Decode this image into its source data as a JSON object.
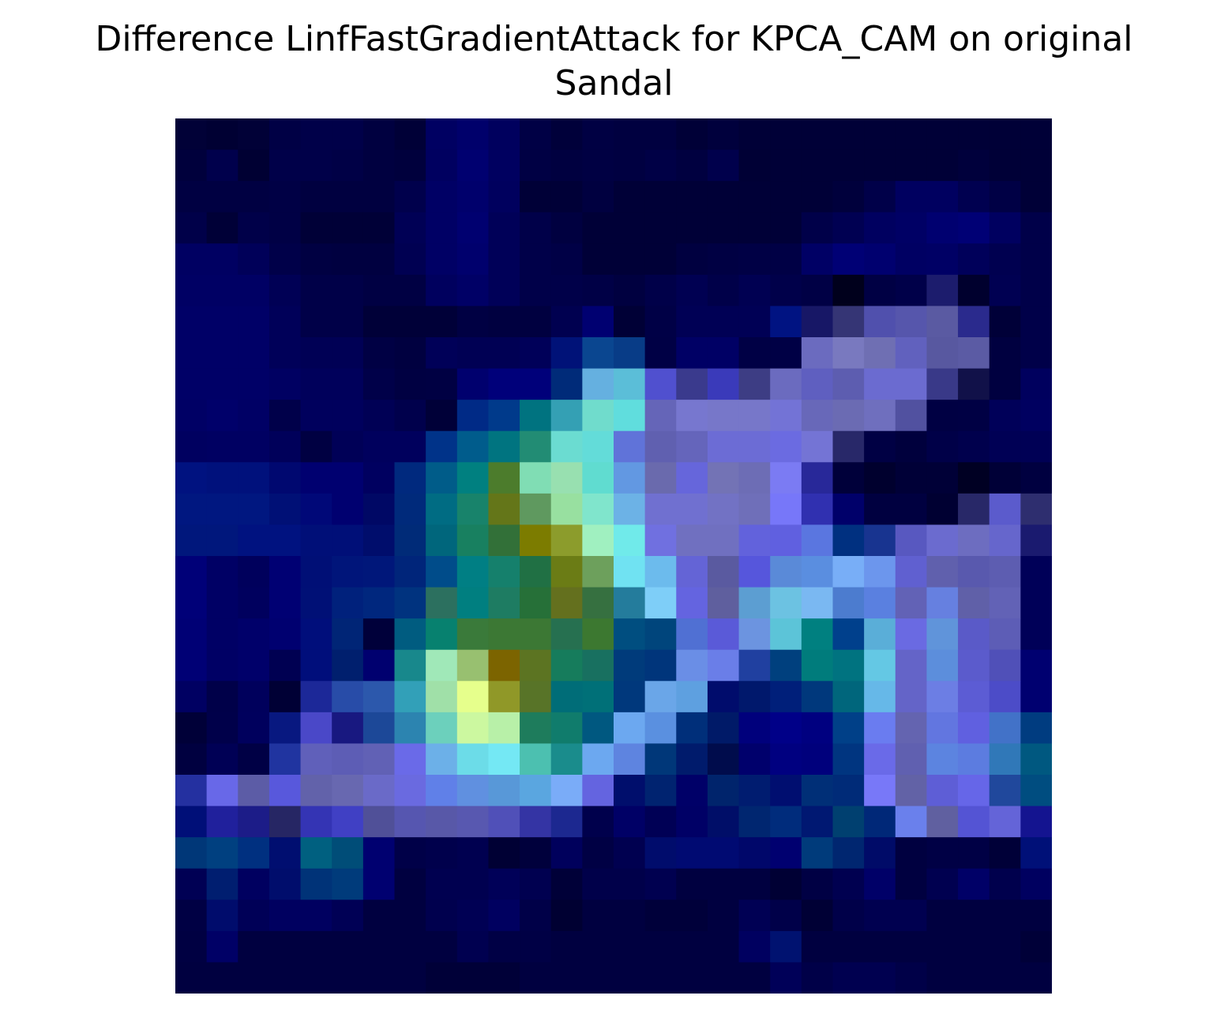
{
  "chart_data": {
    "type": "heatmap",
    "title": "Difference LinfFastGradientAttack for KPCA_CAM on original\nSandal",
    "xlabel": "",
    "ylabel": "",
    "axes_visible": false,
    "grid": false,
    "colormap": "jet",
    "rows": 28,
    "cols": 28,
    "colors": [
      [
        "#010137",
        "#000033",
        "#010137",
        "#000045",
        "#000049",
        "#000049",
        "#000040",
        "#000037",
        "#000062",
        "#00006b",
        "#00005e",
        "#000045",
        "#00003a",
        "#000043",
        "#000040",
        "#000040",
        "#000037",
        "#00003d",
        "#000037",
        "#000037",
        "#000037",
        "#000037",
        "#000037",
        "#000037",
        "#000037",
        "#000037",
        "#000037",
        "#000037"
      ],
      [
        "#00003c",
        "#00004c",
        "#000033",
        "#000049",
        "#000049",
        "#000046",
        "#000040",
        "#00003d",
        "#000060",
        "#000070",
        "#000060",
        "#000044",
        "#000040",
        "#000043",
        "#000041",
        "#000046",
        "#000040",
        "#00004c",
        "#000035",
        "#000037",
        "#000037",
        "#000037",
        "#000037",
        "#000037",
        "#000037",
        "#00003c",
        "#000037",
        "#000037"
      ],
      [
        "#000042",
        "#000042",
        "#000042",
        "#000045",
        "#000040",
        "#000040",
        "#000040",
        "#00004c",
        "#000065",
        "#00006c",
        "#00005e",
        "#000037",
        "#000037",
        "#000040",
        "#000037",
        "#000037",
        "#000037",
        "#000037",
        "#000037",
        "#000037",
        "#000037",
        "#00003c",
        "#000049",
        "#000060",
        "#000060",
        "#000050",
        "#000045",
        "#000037"
      ],
      [
        "#000049",
        "#000037",
        "#000049",
        "#000045",
        "#000037",
        "#000037",
        "#000037",
        "#000055",
        "#000065",
        "#000070",
        "#000058",
        "#000049",
        "#000040",
        "#000037",
        "#000037",
        "#000037",
        "#000037",
        "#000037",
        "#000037",
        "#000037",
        "#000049",
        "#000052",
        "#000060",
        "#000065",
        "#000070",
        "#000075",
        "#000060",
        "#000049"
      ],
      [
        "#000062",
        "#000062",
        "#000059",
        "#000049",
        "#000042",
        "#000040",
        "#000040",
        "#000052",
        "#000065",
        "#00006d",
        "#000058",
        "#000049",
        "#000046",
        "#000037",
        "#000037",
        "#000037",
        "#000040",
        "#000043",
        "#000045",
        "#000045",
        "#000065",
        "#000075",
        "#00006f",
        "#000063",
        "#000065",
        "#00005a",
        "#000050",
        "#000049"
      ],
      [
        "#000064",
        "#000064",
        "#000064",
        "#000055",
        "#000048",
        "#000048",
        "#000043",
        "#000043",
        "#00005e",
        "#000066",
        "#000058",
        "#000049",
        "#000049",
        "#000046",
        "#000040",
        "#000049",
        "#000052",
        "#000049",
        "#000052",
        "#00004a",
        "#000045",
        "#00001c",
        "#000044",
        "#000049",
        "#1c1c6d",
        "#00002e",
        "#000052",
        "#000049"
      ],
      [
        "#000067",
        "#000067",
        "#000067",
        "#000059",
        "#000048",
        "#000048",
        "#000038",
        "#000038",
        "#000038",
        "#000043",
        "#000040",
        "#000040",
        "#000050",
        "#000071",
        "#000036",
        "#000046",
        "#000055",
        "#000055",
        "#000055",
        "#001382",
        "#171766",
        "#353575",
        "#5050ad",
        "#5656ac",
        "#5a5aa2",
        "#2a2a8d",
        "#000038",
        "#000049"
      ],
      [
        "#000067",
        "#000067",
        "#000067",
        "#000059",
        "#000055",
        "#000055",
        "#000044",
        "#000040",
        "#000058",
        "#000054",
        "#000054",
        "#000059",
        "#001278",
        "#0a4690",
        "#083c87",
        "#000045",
        "#000065",
        "#000065",
        "#000045",
        "#000045",
        "#6b6bbf",
        "#7979bf",
        "#6f6fb3",
        "#6161be",
        "#5858a0",
        "#5b5ba4",
        "#000040",
        "#000049"
      ],
      [
        "#000067",
        "#000067",
        "#000067",
        "#000062",
        "#00005b",
        "#00005b",
        "#000049",
        "#000042",
        "#000043",
        "#00006e",
        "#00007a",
        "#00007a",
        "#002b79",
        "#65b0e0",
        "#5bbed8",
        "#5050cf",
        "#3a3a8d",
        "#3a3aba",
        "#3d3d84",
        "#6b6bbf",
        "#5f5fc0",
        "#5d5db0",
        "#6b6bd0",
        "#6b6bd0",
        "#393988",
        "#111149",
        "#000040",
        "#00005e"
      ],
      [
        "#000065",
        "#00006a",
        "#000065",
        "#00004a",
        "#00005d",
        "#00005d",
        "#000055",
        "#00004c",
        "#000038",
        "#002a86",
        "#003a8b",
        "#007380",
        "#34a0b4",
        "#70dccc",
        "#60dddd",
        "#6565b8",
        "#7777cf",
        "#7777c9",
        "#7777c9",
        "#7373d6",
        "#6868b9",
        "#6b6bb3",
        "#6f6fbe",
        "#5151a0",
        "#000043",
        "#000044",
        "#000059",
        "#000060"
      ],
      [
        "#000060",
        "#000062",
        "#000062",
        "#00005a",
        "#000042",
        "#000057",
        "#00005d",
        "#00005d",
        "#003389",
        "#005c8c",
        "#007480",
        "#228c74",
        "#6bdcd1",
        "#63dcd9",
        "#6073d9",
        "#6060b0",
        "#6565bb",
        "#6c6cd5",
        "#6c6cd5",
        "#6b6be1",
        "#7474d5",
        "#282869",
        "#000044",
        "#00003d",
        "#000048",
        "#00004d",
        "#000055",
        "#000055"
      ],
      [
        "#001280",
        "#00117c",
        "#00117c",
        "#000870",
        "#000070",
        "#000070",
        "#000060",
        "#00297e",
        "#005c89",
        "#008080",
        "#4c7c2c",
        "#80ddb4",
        "#98e0b0",
        "#60dcd0",
        "#6298e2",
        "#6a6aad",
        "#6666db",
        "#7373b5",
        "#6d6db5",
        "#7b7bf3",
        "#282899",
        "#00003a",
        "#00002e",
        "#000037",
        "#000037",
        "#000023",
        "#000037",
        "#000040"
      ],
      [
        "#001780",
        "#001780",
        "#001780",
        "#001076",
        "#000878",
        "#000070",
        "#000865",
        "#002a7b",
        "#006c83",
        "#18836b",
        "#647619",
        "#5f995f",
        "#98e0a0",
        "#80e5cc",
        "#6cb2e6",
        "#7070d0",
        "#7070d0",
        "#7272c4",
        "#6f6fb9",
        "#7777f9",
        "#3030b0",
        "#00006a",
        "#000040",
        "#000040",
        "#000032",
        "#282868",
        "#5b5bcc",
        "#2e2e6f"
      ],
      [
        "#00177c",
        "#00177c",
        "#001280",
        "#001280",
        "#000f78",
        "#000f78",
        "#000d6c",
        "#002b78",
        "#00667c",
        "#188060",
        "#327038",
        "#7c7c00",
        "#8c9c2c",
        "#a0f0c0",
        "#70eaea",
        "#7070e0",
        "#7070c0",
        "#7070c0",
        "#6262dc",
        "#6060e0",
        "#5a76e0",
        "#003080",
        "#183490",
        "#5858c0",
        "#6b6bcf",
        "#6d6dc0",
        "#6666cc",
        "#1a1a6f"
      ],
      [
        "#000078",
        "#000065",
        "#00005c",
        "#000073",
        "#000f76",
        "#00157a",
        "#00177a",
        "#00257a",
        "#004c8a",
        "#007f84",
        "#15806c",
        "#207044",
        "#6b7c15",
        "#6da05c",
        "#70e2f2",
        "#6cbbed",
        "#6464d6",
        "#5a5aa0",
        "#5656dc",
        "#5a8ad8",
        "#5a8ee0",
        "#78aef7",
        "#6c96ed",
        "#6060d0",
        "#6060ad",
        "#5959ae",
        "#5d5db1",
        "#000058"
      ],
      [
        "#000078",
        "#000065",
        "#00005e",
        "#000073",
        "#001076",
        "#00217c",
        "#00277e",
        "#00337f",
        "#2c705f",
        "#007f80",
        "#1e7c62",
        "#267038",
        "#64701e",
        "#367040",
        "#247c9c",
        "#7ecef8",
        "#6464e0",
        "#5f5f9e",
        "#5c9ed2",
        "#6cc2e2",
        "#7ab8f2",
        "#4c7ccf",
        "#5a80e0",
        "#6262b6",
        "#6680e0",
        "#6060a8",
        "#6262b6",
        "#000058"
      ],
      [
        "#000075",
        "#000065",
        "#00006a",
        "#000070",
        "#000e7b",
        "#002576",
        "#00003a",
        "#005c80",
        "#07816f",
        "#3a7a3a",
        "#3c7834",
        "#3c7834",
        "#267050",
        "#3c7830",
        "#004e80",
        "#00457c",
        "#5070d3",
        "#5a5ad8",
        "#6c94e0",
        "#5cc4d8",
        "#008080",
        "#00408c",
        "#5aaed8",
        "#6a6ae2",
        "#6094da",
        "#5a5ac8",
        "#5d5db6",
        "#000058"
      ],
      [
        "#000075",
        "#000065",
        "#00006a",
        "#000052",
        "#000e7b",
        "#001f6e",
        "#00006f",
        "#18888c",
        "#a0e8b8",
        "#98c070",
        "#7c6400",
        "#5c7422",
        "#167c5c",
        "#187060",
        "#003b7b",
        "#00357b",
        "#6a8ee6",
        "#6a7ee8",
        "#2040a0",
        "#00407e",
        "#007c7c",
        "#007380",
        "#64c8e4",
        "#6464c8",
        "#5c8edc",
        "#5b5bcc",
        "#5050b8",
        "#000070"
      ],
      [
        "#000062",
        "#000049",
        "#00005c",
        "#000035",
        "#1c2898",
        "#284ca8",
        "#2c58ac",
        "#32a0b8",
        "#a0e0a8",
        "#e6ff8c",
        "#909828",
        "#587428",
        "#006d78",
        "#007078",
        "#00387c",
        "#6aa6e8",
        "#5ea0e0",
        "#000c6c",
        "#00186c",
        "#001f7a",
        "#00387c",
        "#00667c",
        "#66b8e8",
        "#6464c8",
        "#6c7ee4",
        "#5c5cd4",
        "#4c4cc8",
        "#000070"
      ],
      [
        "#000038",
        "#00004a",
        "#00005d",
        "#081880",
        "#4a48c8",
        "#181880",
        "#1c4898",
        "#2c84b0",
        "#6cd0bc",
        "#ccf8a0",
        "#b8f0a8",
        "#1e7c5c",
        "#107c6c",
        "#005880",
        "#6ca8f0",
        "#5a90e0",
        "#002f7a",
        "#001a68",
        "#00007c",
        "#000088",
        "#000080",
        "#004088",
        "#6a7cf0",
        "#6464b0",
        "#6276e0",
        "#6060e0",
        "#4272c8",
        "#003c80"
      ],
      [
        "#000040",
        "#000055",
        "#000045",
        "#2034a0",
        "#6060ba",
        "#5d5db5",
        "#6161b5",
        "#6a6ae8",
        "#6cb0e8",
        "#6cdce8",
        "#74e8f4",
        "#4cc0b0",
        "#1a8c8c",
        "#6ca8f0",
        "#5e84e0",
        "#003779",
        "#001b6c",
        "#000c4c",
        "#00006c",
        "#000080",
        "#00007c",
        "#003580",
        "#6a6ae8",
        "#6060b0",
        "#5c84e0",
        "#5c7ce0",
        "#3078b8",
        "#005880"
      ],
      [
        "#2430a0",
        "#6868e8",
        "#5c5ca6",
        "#5858dc",
        "#6262aa",
        "#6868b0",
        "#6a6ac8",
        "#6a6ae0",
        "#6080e8",
        "#6090e0",
        "#5898d8",
        "#5aa6e0",
        "#7aacf8",
        "#6464e0",
        "#000e6c",
        "#002370",
        "#000068",
        "#00246c",
        "#001c70",
        "#000e70",
        "#002f77",
        "#002b78",
        "#7878f8",
        "#6262a6",
        "#5e5ed6",
        "#6666e8",
        "#20489c",
        "#004d80"
      ],
      [
        "#000f78",
        "#20209c",
        "#1c1c88",
        "#262664",
        "#3434b4",
        "#4040c4",
        "#505098",
        "#5656b0",
        "#5858a8",
        "#5858b0",
        "#5050b8",
        "#3434a4",
        "#1c2890",
        "#00004c",
        "#000066",
        "#000055",
        "#000066",
        "#000e68",
        "#002670",
        "#002c7c",
        "#001872",
        "#004070",
        "#002878",
        "#6a80ec",
        "#6060a0",
        "#5454d4",
        "#6464d8",
        "#141490",
        "#000058"
      ],
      [
        "#003778",
        "#004080",
        "#003080",
        "#000e70",
        "#006080",
        "#004d78",
        "#000070",
        "#000048",
        "#00004c",
        "#000050",
        "#000034",
        "#00003c",
        "#00005c",
        "#000044",
        "#000050",
        "#000c6c",
        "#000a72",
        "#000a72",
        "#00076a",
        "#000070",
        "#003b7b",
        "#002670",
        "#000b68",
        "#000040",
        "#000045",
        "#000045",
        "#000038",
        "#001078"
      ],
      [
        "#000054",
        "#001e70",
        "#000060",
        "#000d6c",
        "#003378",
        "#003b7b",
        "#000070",
        "#000040",
        "#000050",
        "#000050",
        "#000058",
        "#000050",
        "#000038",
        "#00004a",
        "#00004a",
        "#000050",
        "#000040",
        "#000040",
        "#000040",
        "#000034",
        "#000044",
        "#000050",
        "#000068",
        "#000040",
        "#000050",
        "#000067",
        "#00004d",
        "#000060"
      ],
      [
        "#000044",
        "#000c6c",
        "#000057",
        "#000060",
        "#000060",
        "#000055",
        "#000040",
        "#000040",
        "#00004e",
        "#000054",
        "#000060",
        "#000048",
        "#000032",
        "#000040",
        "#000040",
        "#00003a",
        "#00003a",
        "#000040",
        "#000054",
        "#000049",
        "#000035",
        "#000049",
        "#000050",
        "#000050",
        "#000040",
        "#000040",
        "#000040",
        "#000040"
      ],
      [
        "#000042",
        "#000066",
        "#000040",
        "#000040",
        "#000040",
        "#000040",
        "#000040",
        "#000040",
        "#000040",
        "#000050",
        "#000045",
        "#000045",
        "#000040",
        "#000040",
        "#000040",
        "#000040",
        "#000040",
        "#000040",
        "#000060",
        "#001270",
        "#000040",
        "#000040",
        "#000040",
        "#000040",
        "#000040",
        "#000040",
        "#000040",
        "#000038"
      ],
      [
        "#000040",
        "#000040",
        "#000040",
        "#000040",
        "#000040",
        "#000040",
        "#000040",
        "#000040",
        "#000038",
        "#000038",
        "#000038",
        "#000040",
        "#000040",
        "#000040",
        "#000040",
        "#000040",
        "#000040",
        "#000040",
        "#000040",
        "#000058",
        "#000048",
        "#000050",
        "#000050",
        "#000048",
        "#000040",
        "#000040",
        "#000040",
        "#000040"
      ]
    ]
  }
}
